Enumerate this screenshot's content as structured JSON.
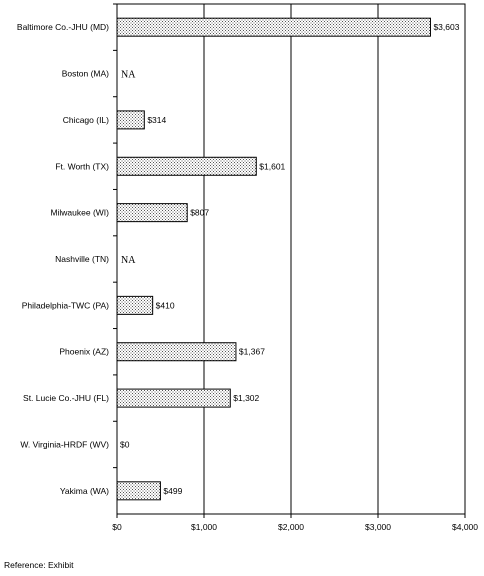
{
  "chart_data": {
    "type": "bar",
    "orientation": "horizontal",
    "categories": [
      "Baltimore Co.-JHU (MD)",
      "Boston (MA)",
      "Chicago (IL)",
      "Ft. Worth (TX)",
      "Milwaukee (WI)",
      "Nashville (TN)",
      "Philadelphia-TWC (PA)",
      "Phoenix (AZ)",
      "St. Lucie Co.-JHU (FL)",
      "W. Virginia-HRDF (WV)",
      "Yakima (WA)"
    ],
    "values": [
      3603,
      null,
      314,
      1601,
      807,
      null,
      410,
      1367,
      1302,
      0,
      499
    ],
    "value_labels": [
      "$3,603",
      "NA",
      "$314",
      "$1,601",
      "$807",
      "NA",
      "$410",
      "$1,367",
      "$1,302",
      "$0",
      "$499"
    ],
    "xlim": [
      0,
      4000
    ],
    "xticks": [
      0,
      1000,
      2000,
      3000,
      4000
    ],
    "xtick_labels": [
      "$0",
      "$1,000",
      "$2,000",
      "$3,000",
      "$4,000"
    ],
    "grid": "vertical",
    "bar_fill": "dotted pattern",
    "title": "",
    "xlabel": "",
    "ylabel": ""
  },
  "footer": {
    "reference": "Reference: Exhibit"
  }
}
